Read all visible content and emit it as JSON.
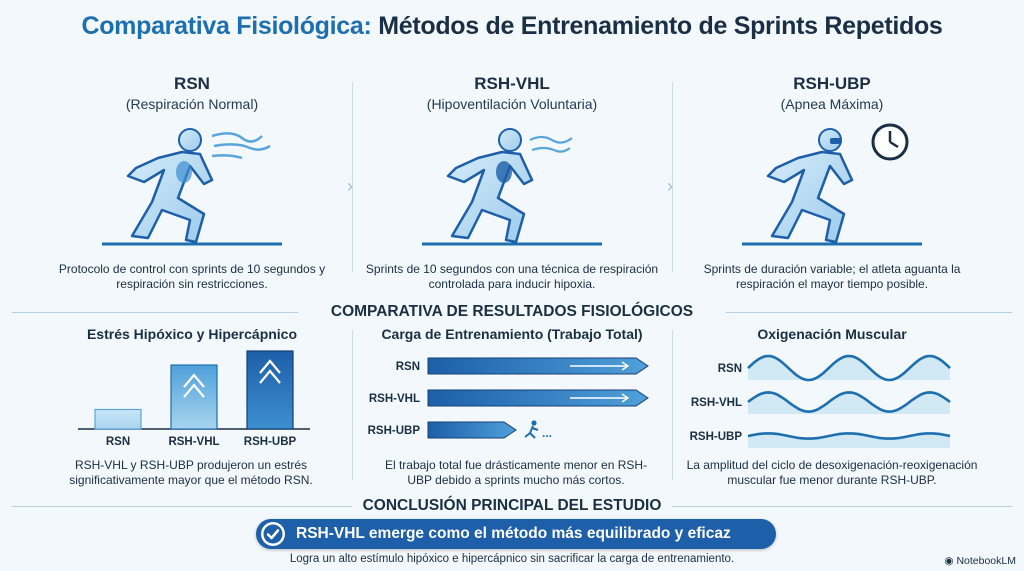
{
  "header": {
    "title_part1": "Comparativa Fisiológica:",
    "title_part2": "Métodos de Entrenamiento de Sprints Repetidos"
  },
  "methods": [
    {
      "name": "RSN",
      "subtitle": "(Respiración Normal)",
      "description": "Protocolo de control con sprints de 10 segundos y respiración sin restricciones.",
      "icon": "runner-breathing-icon"
    },
    {
      "name": "RSH-VHL",
      "subtitle": "(Hipoventilación Voluntaria)",
      "description": "Sprints de 10 segundos con una técnica de respiración controlada para inducir hipoxia.",
      "icon": "runner-hypoventilation-icon"
    },
    {
      "name": "RSH-UBP",
      "subtitle": "(Apnea Máxima)",
      "description": "Sprints de duración variable; el atleta aguanta la respiración el mayor tiempo posible.",
      "icon": "runner-apnea-clock-icon"
    }
  ],
  "results": {
    "heading": "COMPARATIVA DE RESULTADOS FISIOLÓGICOS",
    "stress": {
      "title": "Estrés Hipóxico y Hipercápnico",
      "categories": [
        "RSN",
        "RSH-VHL",
        "RSH-UBP"
      ],
      "values": [
        0.25,
        0.82,
        1.0
      ],
      "description": "RSH-VHL y RSH-UBP produjeron un estrés significativamente mayor que el método RSN."
    },
    "load": {
      "title": "Carga de Entrenamiento (Trabajo Total)",
      "categories": [
        "RSN",
        "RSH-VHL",
        "RSH-UBP"
      ],
      "values": [
        1.0,
        1.0,
        0.4
      ],
      "description": "El trabajo total fue drásticamente menor en RSH-UBP debido a sprints mucho más cortos."
    },
    "oxygen": {
      "title": "Oxigenación Muscular",
      "categories": [
        "RSN",
        "RSH-VHL",
        "RSH-UBP"
      ],
      "amplitudes": [
        1.0,
        0.8,
        0.22
      ],
      "description": "La amplitud del ciclo de desoxigenación-reoxigenación muscular fue menor durante RSH-UBP."
    }
  },
  "conclusion": {
    "heading": "CONCLUSIÓN PRINCIPAL DEL ESTUDIO",
    "main": "RSH-VHL emerge como el método más equilibrado y eficaz",
    "detail": "Logra un alto estímulo hipóxico e hipercápnico sin sacrificar la carga de entrenamiento."
  },
  "brand": "NotebookLM",
  "colors": {
    "accent": "#1d6fb0",
    "dark": "#1a2e44",
    "light": "#a9d4ee",
    "mid": "#3d8fd0",
    "deep": "#1d5fa8"
  }
}
